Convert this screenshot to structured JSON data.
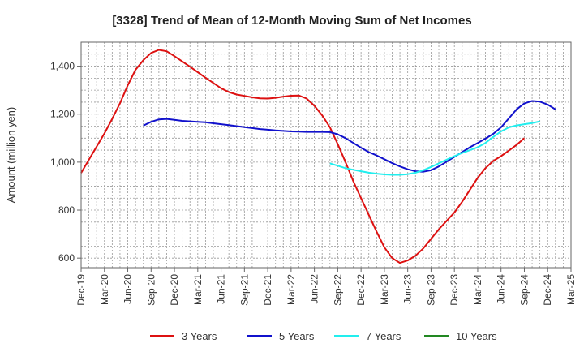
{
  "chart_data": {
    "type": "line",
    "title": "[3328]  Trend of Mean of 12-Month Moving Sum of Net Incomes",
    "xlabel": "",
    "ylabel": "Amount (million yen)",
    "ylim": [
      560,
      1500
    ],
    "yticks": [
      600,
      800,
      1000,
      1200,
      1400
    ],
    "ytick_labels": [
      "600",
      "800",
      "1,000",
      "1,200",
      "1,400"
    ],
    "xlim": [
      "2019-12",
      "2025-03"
    ],
    "xtick_labels": [
      "Dec-19",
      "Mar-20",
      "Jun-20",
      "Sep-20",
      "Dec-20",
      "Mar-21",
      "Jun-21",
      "Sep-21",
      "Dec-21",
      "Mar-22",
      "Jun-22",
      "Sep-22",
      "Dec-22",
      "Mar-23",
      "Jun-23",
      "Sep-23",
      "Dec-23",
      "Mar-24",
      "Jun-24",
      "Sep-24",
      "Dec-24",
      "Mar-25"
    ],
    "grid": true,
    "legend_position": "bottom",
    "series": [
      {
        "name": "3 Years",
        "color": "#dd1111",
        "start": "2019-12",
        "values": [
          955,
          1010,
          1065,
          1120,
          1180,
          1245,
          1320,
          1385,
          1425,
          1455,
          1468,
          1462,
          1442,
          1420,
          1398,
          1375,
          1352,
          1330,
          1308,
          1292,
          1282,
          1276,
          1270,
          1266,
          1265,
          1268,
          1273,
          1277,
          1278,
          1265,
          1235,
          1195,
          1145,
          1075,
          1000,
          920,
          850,
          780,
          710,
          645,
          600,
          580,
          590,
          610,
          640,
          680,
          720,
          755,
          790,
          835,
          885,
          935,
          975,
          1005,
          1025,
          1048,
          1072,
          1100
        ]
      },
      {
        "name": "5 Years",
        "color": "#1111cc",
        "start": "2020-08",
        "values": [
          1152,
          1168,
          1178,
          1180,
          1176,
          1172,
          1170,
          1168,
          1166,
          1162,
          1158,
          1154,
          1150,
          1146,
          1142,
          1138,
          1135,
          1132,
          1130,
          1128,
          1127,
          1126,
          1126,
          1126,
          1125,
          1116,
          1100,
          1080,
          1060,
          1042,
          1028,
          1012,
          996,
          982,
          970,
          962,
          960,
          966,
          982,
          1002,
          1022,
          1042,
          1062,
          1080,
          1098,
          1118,
          1145,
          1182,
          1220,
          1245,
          1255,
          1252,
          1240,
          1220
        ]
      },
      {
        "name": "7 Years",
        "color": "#22eeee",
        "start": "2022-08",
        "values": [
          995,
          985,
          975,
          968,
          962,
          956,
          952,
          949,
          947,
          947,
          950,
          956,
          966,
          980,
          995,
          1010,
          1025,
          1038,
          1050,
          1062,
          1080,
          1105,
          1128,
          1145,
          1153,
          1158,
          1163,
          1170
        ]
      },
      {
        "name": "10 Years",
        "color": "#228822",
        "start": "2019-12",
        "values": []
      }
    ]
  }
}
